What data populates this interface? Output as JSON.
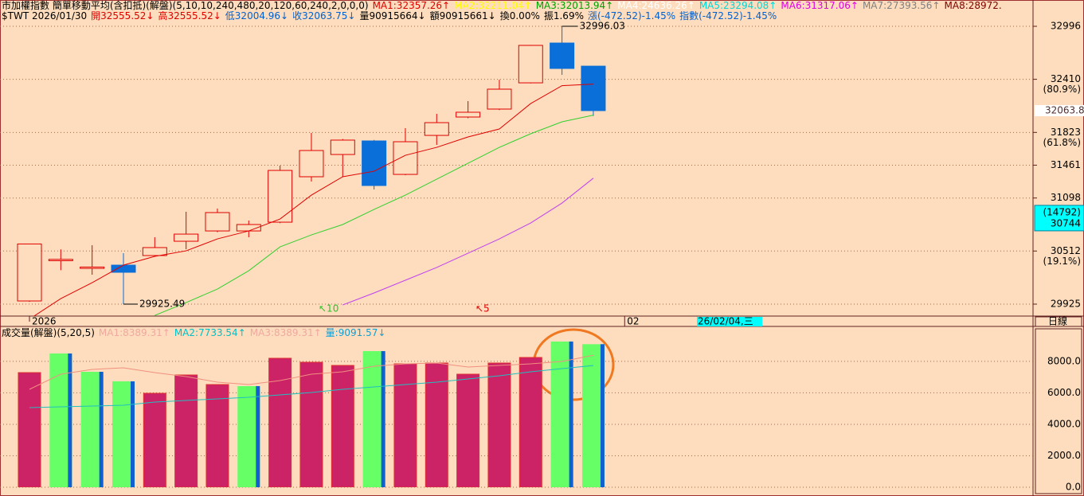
{
  "chart_data": [
    {
      "type": "candlestick",
      "header_lines": [
        [
          {
            "text": "市加權指數 簡單移動平均(含扣抵)(解盤)(5,10,10,240,480,20,120,60,240,2,0,0,0)",
            "color": "#000000"
          },
          {
            "text": "MA1:32357.26↑",
            "color": "#e00000"
          },
          {
            "text": "MA2:32211.04↑",
            "color": "#ffff00"
          },
          {
            "text": "MA3:32013.94↑",
            "color": "#00a000"
          },
          {
            "text": "MA4:24636.26↑",
            "color": "#ffffff"
          },
          {
            "text": "MA5:23294.08↑",
            "color": "#00d8d8"
          },
          {
            "text": "MA6:31317.06↑",
            "color": "#e000e0"
          },
          {
            "text": "MA7:27393.56↑",
            "color": "#808080"
          },
          {
            "text": "MA8:28972.",
            "color": "#800000"
          }
        ],
        [
          {
            "text": "$TWT 2026/01/30",
            "color": "#000000"
          },
          {
            "text": "開32555.52↓",
            "color": "#e00000"
          },
          {
            "text": "高32555.52↓",
            "color": "#e00000"
          },
          {
            "text": "低32004.96↓",
            "color": "#0060d0"
          },
          {
            "text": "收32063.75↓",
            "color": "#0060d0"
          },
          {
            "text": "量90915664↓",
            "color": "#000000"
          },
          {
            "text": "額90915661↓",
            "color": "#000000"
          },
          {
            "text": "換0.00%",
            "color": "#000000"
          },
          {
            "text": "振1.69%",
            "color": "#000000"
          },
          {
            "text": "漲(-472.52)-1.45%",
            "color": "#0060d0"
          },
          {
            "text": "指數(-472.52)-1.45%",
            "color": "#0060d0"
          }
        ]
      ],
      "categories": [
        "2026",
        null,
        null,
        null,
        null,
        null,
        null,
        null,
        null,
        null,
        null,
        null,
        null,
        null,
        null,
        null,
        null,
        null,
        null
      ],
      "next_label": "02",
      "cursor_date": "26/02/04,三",
      "timeframe": "日線",
      "open": [
        29960,
        30405,
        30320,
        30356,
        30462,
        30620,
        30734,
        30734,
        30831,
        31333,
        31579,
        31729,
        31359,
        31790,
        31993,
        32081,
        32371,
        32811,
        32555.52
      ],
      "high": [
        30590,
        30530,
        30576,
        30488,
        30664,
        30946,
        30981,
        30849,
        31456,
        31817,
        31750,
        31740,
        31870,
        32028,
        32169,
        32406,
        32790,
        32996.03,
        32555.52
      ],
      "low": [
        29950,
        30300,
        30250,
        29925.49,
        30450,
        30532,
        30720,
        30664,
        30820,
        31280,
        31333,
        31192,
        31350,
        31685,
        31980,
        32070,
        32365,
        32459,
        32004.96
      ],
      "close": [
        30590,
        30420,
        30335,
        30277,
        30550,
        30699,
        30937,
        30805,
        31403,
        31623,
        31738,
        31236,
        31720,
        31931,
        32046,
        32301,
        32785,
        32530,
        32063.75
      ],
      "up_color": "#e00000",
      "down_color": "#0a6fd8",
      "series": [
        {
          "color": "#e00000",
          "values": [
            29760,
            29986,
            30162,
            30356,
            30453,
            30514,
            30646,
            30734,
            30866,
            31130,
            31333,
            31394,
            31570,
            31658,
            31773,
            31861,
            32142,
            32340,
            32357.26
          ]
        },
        {
          "color": "#30d030",
          "values": [
            null,
            null,
            null,
            null,
            29800,
            29942,
            30092,
            30294,
            30558,
            30690,
            30805,
            30972,
            31130,
            31306,
            31482,
            31658,
            31808,
            31940,
            32013.94
          ]
        },
        {
          "color": "#c040f0",
          "values": [
            null,
            null,
            null,
            null,
            null,
            null,
            null,
            null,
            null,
            null,
            29916,
            30048,
            30189,
            30330,
            30488,
            30646,
            30822,
            31042,
            31317.06
          ]
        }
      ],
      "max_label": "32996.03",
      "min_label": "29925.49",
      "ma_markers": [
        {
          "text": "↖10",
          "color": "#30c030"
        },
        {
          "text": "↖5",
          "color": "#e00000"
        }
      ],
      "ylim": [
        29793,
        33181
      ],
      "yticks": [
        29925,
        30512,
        31098,
        31461,
        31823,
        32410,
        32996
      ],
      "fib_labels": [
        null,
        "(19.1%)",
        null,
        null,
        "(61.8%)",
        "(80.9%)",
        null
      ],
      "last_price": 32063.8,
      "cursor_value": 30744,
      "cursor_count": "(14792)",
      "grid": true
    },
    {
      "type": "bar",
      "header_lines": [
        [
          {
            "text": "成交量(解盤)(5,20,5)",
            "color": "#000000"
          },
          {
            "text": "MA1:8389.31↑",
            "color": "#f0a8a0"
          },
          {
            "text": "MA2:7733.54↑",
            "color": "#00c0c8"
          },
          {
            "text": "MA3:8389.31↑",
            "color": "#f0a8a0"
          },
          {
            "text": "量:9091.57↓",
            "color": "#10a0d8"
          }
        ]
      ],
      "values": [
        7286,
        8500,
        7337,
        6730,
        5971,
        7135,
        6527,
        6426,
        8197,
        7944,
        7742,
        8653,
        7843,
        7894,
        7185,
        7894,
        8248,
        9260,
        9091.57
      ],
      "colors": [
        "#cc2266",
        "#66ff66",
        "#66ff66",
        "#66ff66",
        "#cc2266",
        "#cc2266",
        "#cc2266",
        "#66ff66",
        "#cc2266",
        "#cc2266",
        "#cc2266",
        "#66ff66",
        "#cc2266",
        "#cc2266",
        "#cc2266",
        "#cc2266",
        "#cc2266",
        "#66ff66",
        "#66ff66"
      ],
      "series": [
        {
          "color": "#f09080",
          "values": [
            6224,
            7185,
            7489,
            7590,
            7286,
            7033,
            6679,
            6527,
            6780,
            7185,
            7337,
            7691,
            7843,
            7894,
            7641,
            7742,
            7843,
            7995,
            8389.31
          ]
        },
        {
          "color": "#20c0c0",
          "values": [
            5060,
            5111,
            5161,
            5212,
            5414,
            5515,
            5617,
            5718,
            5870,
            6021,
            6224,
            6376,
            6527,
            6679,
            6882,
            7084,
            7337,
            7539,
            7733.54
          ]
        }
      ],
      "ylim": [
        0,
        10120
      ],
      "yticks": [
        {
          "value": 0,
          "label": "0.0"
        },
        {
          "value": 2000,
          "label": "2000.0"
        },
        {
          "value": 4000,
          "label": "4000.0"
        },
        {
          "value": 6000,
          "label": "6000.0"
        },
        {
          "value": 8000,
          "label": "8000.0"
        }
      ],
      "grid": true
    }
  ]
}
